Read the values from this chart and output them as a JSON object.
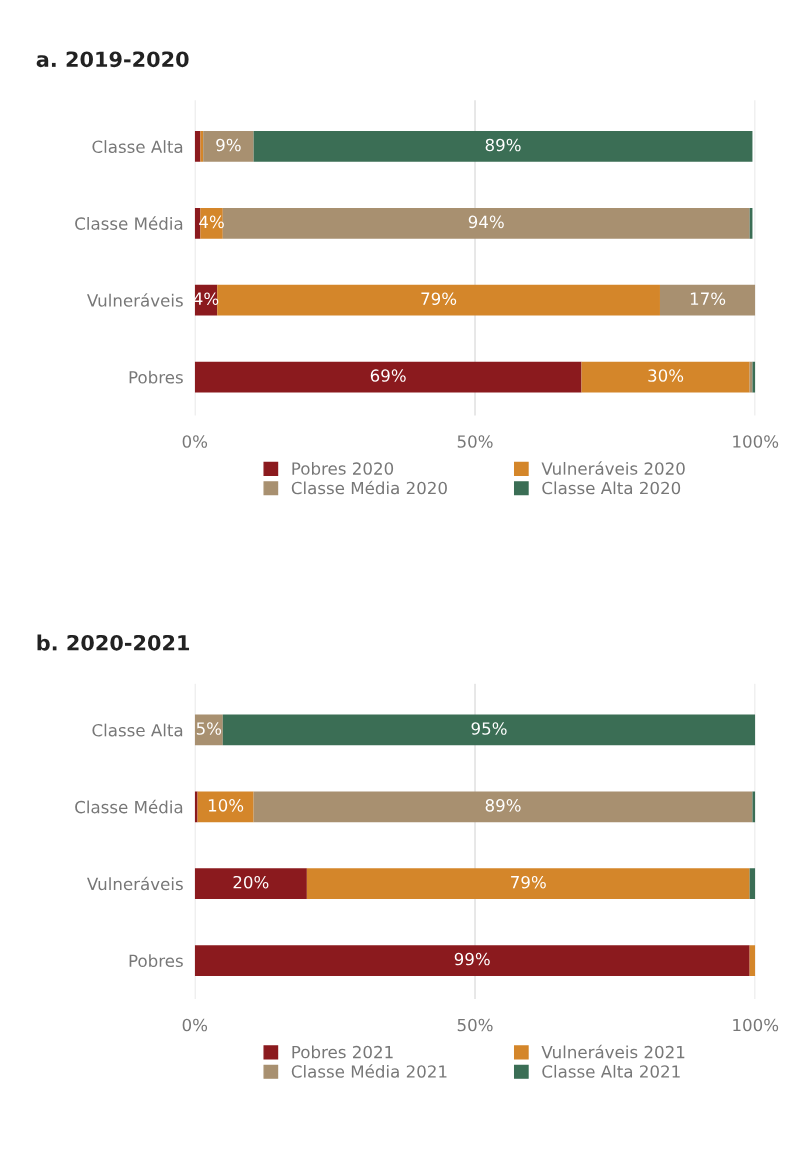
{
  "chart_data": [
    {
      "type": "bar",
      "title": "a. 2019-2020",
      "orientation": "horizontal",
      "stacked": true,
      "categories": [
        "Classe Alta",
        "Classe Média",
        "Vulneráveis",
        "Pobres"
      ],
      "series": [
        {
          "name": "Pobres 2020",
          "color": "#8b1a1e",
          "values": [
            1,
            1,
            4,
            69
          ],
          "value_labels": [
            null,
            null,
            "4%",
            "69%"
          ]
        },
        {
          "name": "Vulneráveis 2020",
          "color": "#d4862a",
          "values": [
            0.5,
            4,
            79,
            30
          ],
          "value_labels": [
            null,
            "4%",
            "79%",
            "30%"
          ]
        },
        {
          "name": "Classe Média 2020",
          "color": "#a89070",
          "values": [
            9,
            94,
            17,
            0.5
          ],
          "value_labels": [
            "9%",
            "94%",
            "17%",
            null
          ]
        },
        {
          "name": "Classe Alta 2020",
          "color": "#3b6e55",
          "values": [
            89,
            0.5,
            0,
            0.5
          ],
          "value_labels": [
            "89%",
            null,
            null,
            null
          ]
        }
      ],
      "xlim": [
        0,
        100
      ],
      "xticks": [
        {
          "value": 0,
          "label": "0%"
        },
        {
          "value": 50,
          "label": "50%"
        },
        {
          "value": 100,
          "label": "100%"
        }
      ],
      "grid": "x",
      "legend": "bottom"
    },
    {
      "type": "bar",
      "title": "b. 2020-2021",
      "orientation": "horizontal",
      "stacked": true,
      "categories": [
        "Classe Alta",
        "Classe Média",
        "Vulneráveis",
        "Pobres"
      ],
      "series": [
        {
          "name": "Pobres 2021",
          "color": "#8b1a1e",
          "values": [
            0,
            0.5,
            20,
            99
          ],
          "value_labels": [
            null,
            null,
            "20%",
            "99%"
          ]
        },
        {
          "name": "Vulneráveis 2021",
          "color": "#d4862a",
          "values": [
            0,
            10,
            79,
            1
          ],
          "value_labels": [
            null,
            "10%",
            "79%",
            null
          ]
        },
        {
          "name": "Classe Média 2021",
          "color": "#a89070",
          "values": [
            5,
            89,
            0,
            0
          ],
          "value_labels": [
            "5%",
            "89%",
            null,
            null
          ]
        },
        {
          "name": "Classe Alta 2021",
          "color": "#3b6e55",
          "values": [
            95,
            0.5,
            1,
            0
          ],
          "value_labels": [
            "95%",
            null,
            null,
            null
          ]
        }
      ],
      "xlim": [
        0,
        100
      ],
      "xticks": [
        {
          "value": 0,
          "label": "0%"
        },
        {
          "value": 50,
          "label": "50%"
        },
        {
          "value": 100,
          "label": "100%"
        }
      ],
      "grid": "x",
      "legend": "bottom"
    }
  ]
}
